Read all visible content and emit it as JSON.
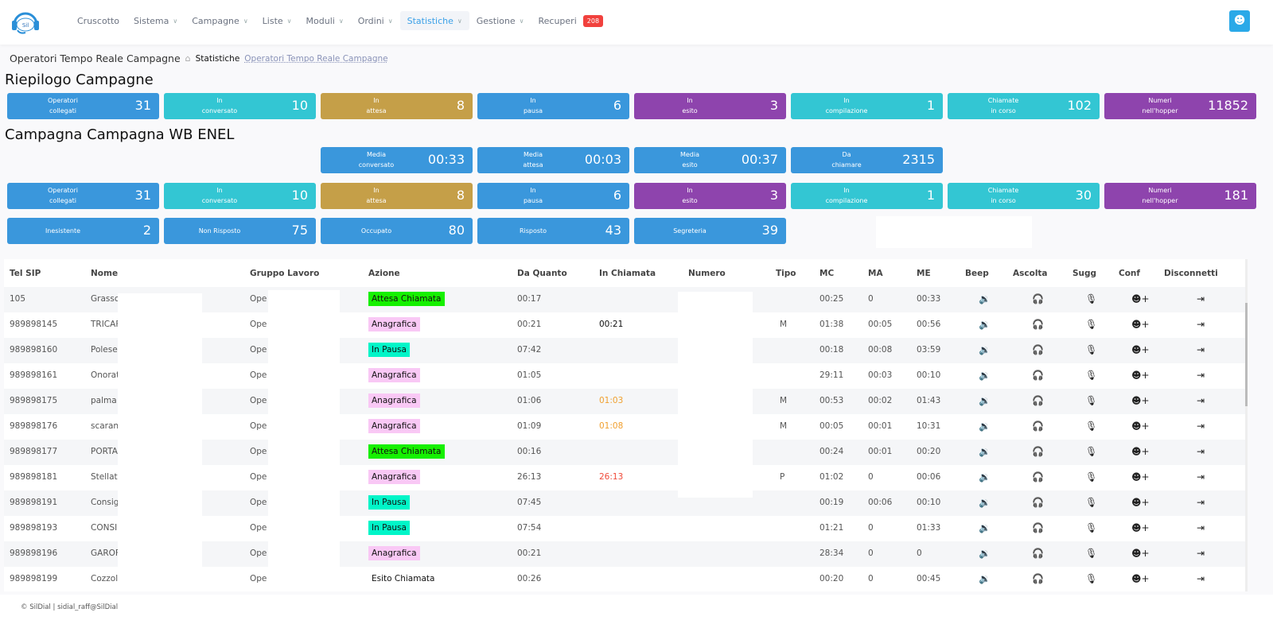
{
  "nav": {
    "logo_text": "SilDial",
    "items": [
      {
        "label": "Cruscotto",
        "chevron": false
      },
      {
        "label": "Sistema",
        "chevron": true
      },
      {
        "label": "Campagne",
        "chevron": true
      },
      {
        "label": "Liste",
        "chevron": true
      },
      {
        "label": "Moduli",
        "chevron": true
      },
      {
        "label": "Ordini",
        "chevron": true
      },
      {
        "label": "Statistiche",
        "chevron": true,
        "active": true
      },
      {
        "label": "Gestione",
        "chevron": true
      },
      {
        "label": "Recuperi",
        "chevron": false,
        "badge": "208"
      }
    ],
    "user_icon": "user-icon"
  },
  "breadcrumb": {
    "title": "Operatori Tempo Reale Campagne",
    "section": "Statistiche",
    "current": "Operatori Tempo Reale Campagne"
  },
  "colors": {
    "blue": "#3a97dc",
    "teal": "#33c6d3",
    "gold": "#c59f48",
    "purple": "#8e44ad",
    "green": "#16f000",
    "pink": "#f9c8f5",
    "aqua": "#00f5c8"
  },
  "summary": {
    "title": "Riepilogo Campagne",
    "cards": [
      {
        "label": "Operatori\ncollegati",
        "value": "31",
        "color": "blue"
      },
      {
        "label": "In\nconversato",
        "value": "10",
        "color": "teal"
      },
      {
        "label": "In\nattesa",
        "value": "8",
        "color": "gold"
      },
      {
        "label": "In\npausa",
        "value": "6",
        "color": "blue"
      },
      {
        "label": "In\nesito",
        "value": "3",
        "color": "purple"
      },
      {
        "label": "In\ncompilazione",
        "value": "1",
        "color": "teal"
      },
      {
        "label": "Chiamate\nin corso",
        "value": "102",
        "color": "teal"
      },
      {
        "label": "Numeri\nnell'hopper",
        "value": "11852",
        "color": "purple"
      }
    ]
  },
  "campaign": {
    "title": "Campagna Campagna WB ENEL",
    "media_cards": [
      {
        "label": "Media\nconversato",
        "value": "00:33",
        "color": "blue"
      },
      {
        "label": "Media\nattesa",
        "value": "00:03",
        "color": "blue"
      },
      {
        "label": "Media\nesito",
        "value": "00:37",
        "color": "blue"
      },
      {
        "label": "Da\nchiamare",
        "value": "2315",
        "color": "blue"
      }
    ],
    "cards": [
      {
        "label": "Operatori\ncollegati",
        "value": "31",
        "color": "blue"
      },
      {
        "label": "In\nconversato",
        "value": "10",
        "color": "teal"
      },
      {
        "label": "In\nattesa",
        "value": "8",
        "color": "gold"
      },
      {
        "label": "In\npausa",
        "value": "6",
        "color": "blue"
      },
      {
        "label": "In\nesito",
        "value": "3",
        "color": "purple"
      },
      {
        "label": "In\ncompilazione",
        "value": "1",
        "color": "teal"
      },
      {
        "label": "Chiamate\nin corso",
        "value": "30",
        "color": "teal"
      },
      {
        "label": "Numeri\nnell'hopper",
        "value": "181",
        "color": "purple"
      }
    ],
    "esiti_cards": [
      {
        "label": "Inesistente",
        "value": "2",
        "color": "blue"
      },
      {
        "label": "Non Risposto",
        "value": "75",
        "color": "blue"
      },
      {
        "label": "Occupato",
        "value": "80",
        "color": "blue"
      },
      {
        "label": "Risposto",
        "value": "43",
        "color": "blue"
      },
      {
        "label": "Segreteria",
        "value": "39",
        "color": "blue"
      }
    ]
  },
  "table": {
    "columns": [
      "Tel SIP",
      "Nome",
      "Gruppo Lavoro",
      "Azione",
      "Da Quanto",
      "In Chiamata",
      "Numero",
      "Tipo",
      "MC",
      "MA",
      "ME",
      "Beep",
      "Ascolta",
      "Sugg",
      "Conf",
      "Disconnetti"
    ],
    "action_icons": [
      "speaker-icon",
      "headphones-icon",
      "microphone-icon",
      "user-add-icon",
      "logout-icon"
    ],
    "rows": [
      {
        "sip": "105",
        "nome": "Grassc",
        "gruppo": "Ope",
        "azione": "Attesa Chiamata",
        "azione_color": "green",
        "da_quanto": "00:17",
        "in_chiamata": "",
        "ic_color": "",
        "tipo": "",
        "mc": "00:25",
        "ma": "0",
        "me": "00:33"
      },
      {
        "sip": "989898145",
        "nome": "TRICAF",
        "gruppo": "Ope",
        "azione": "Anagrafica",
        "azione_color": "pink",
        "da_quanto": "00:21",
        "in_chiamata": "00:21",
        "ic_color": "#111",
        "tipo": "M",
        "mc": "01:38",
        "ma": "00:05",
        "me": "00:56"
      },
      {
        "sip": "989898160",
        "nome": "Polese",
        "gruppo": "Ope",
        "azione": "In Pausa",
        "azione_color": "aqua",
        "da_quanto": "07:42",
        "in_chiamata": "",
        "ic_color": "",
        "tipo": "",
        "mc": "00:18",
        "ma": "00:08",
        "me": "03:59"
      },
      {
        "sip": "989898161",
        "nome": "Onorat",
        "gruppo": "Ope",
        "azione": "Anagrafica",
        "azione_color": "pink",
        "da_quanto": "01:05",
        "in_chiamata": "",
        "ic_color": "",
        "tipo": "",
        "mc": "29:11",
        "ma": "00:03",
        "me": "00:10"
      },
      {
        "sip": "989898175",
        "nome": "palma",
        "gruppo": "Ope",
        "azione": "Anagrafica",
        "azione_color": "pink",
        "da_quanto": "01:06",
        "in_chiamata": "01:03",
        "ic_color": "#f0a030",
        "tipo": "M",
        "mc": "00:53",
        "ma": "00:02",
        "me": "01:43"
      },
      {
        "sip": "989898176",
        "nome": "scaran",
        "gruppo": "Ope",
        "azione": "Anagrafica",
        "azione_color": "pink",
        "da_quanto": "01:09",
        "in_chiamata": "01:08",
        "ic_color": "#f0a030",
        "tipo": "M",
        "mc": "00:05",
        "ma": "00:01",
        "me": "10:31"
      },
      {
        "sip": "989898177",
        "nome": "PORTA",
        "gruppo": "Ope",
        "azione": "Attesa Chiamata",
        "azione_color": "green",
        "da_quanto": "00:16",
        "in_chiamata": "",
        "ic_color": "",
        "tipo": "",
        "mc": "00:24",
        "ma": "00:01",
        "me": "00:20"
      },
      {
        "sip": "989898181",
        "nome": "Stellat",
        "gruppo": "Ope",
        "azione": "Anagrafica",
        "azione_color": "pink",
        "da_quanto": "26:13",
        "in_chiamata": "26:13",
        "ic_color": "#f04a3a",
        "tipo": "P",
        "mc": "01:02",
        "ma": "0",
        "me": "00:06"
      },
      {
        "sip": "989898191",
        "nome": "Consig",
        "gruppo": "Ope",
        "azione": "In Pausa",
        "azione_color": "aqua",
        "da_quanto": "07:45",
        "in_chiamata": "",
        "ic_color": "",
        "tipo": "",
        "mc": "00:19",
        "ma": "00:06",
        "me": "00:10"
      },
      {
        "sip": "989898193",
        "nome": "CONSI",
        "gruppo": "Ope",
        "azione": "In Pausa",
        "azione_color": "aqua",
        "da_quanto": "07:54",
        "in_chiamata": "",
        "ic_color": "",
        "tipo": "",
        "mc": "01:21",
        "ma": "0",
        "me": "01:33"
      },
      {
        "sip": "989898196",
        "nome": "GAROF",
        "gruppo": "Ope",
        "azione": "Anagrafica",
        "azione_color": "pink",
        "da_quanto": "00:21",
        "in_chiamata": "",
        "ic_color": "",
        "tipo": "",
        "mc": "28:34",
        "ma": "0",
        "me": "0"
      },
      {
        "sip": "989898199",
        "nome": "Cozzol",
        "gruppo": "Ope",
        "azione": "Esito Chiamata",
        "azione_color": "",
        "da_quanto": "00:26",
        "in_chiamata": "",
        "ic_color": "",
        "tipo": "",
        "mc": "00:20",
        "ma": "0",
        "me": "00:45"
      }
    ]
  },
  "footer": {
    "text": "SilDial | sidial_raff@SilDial"
  }
}
